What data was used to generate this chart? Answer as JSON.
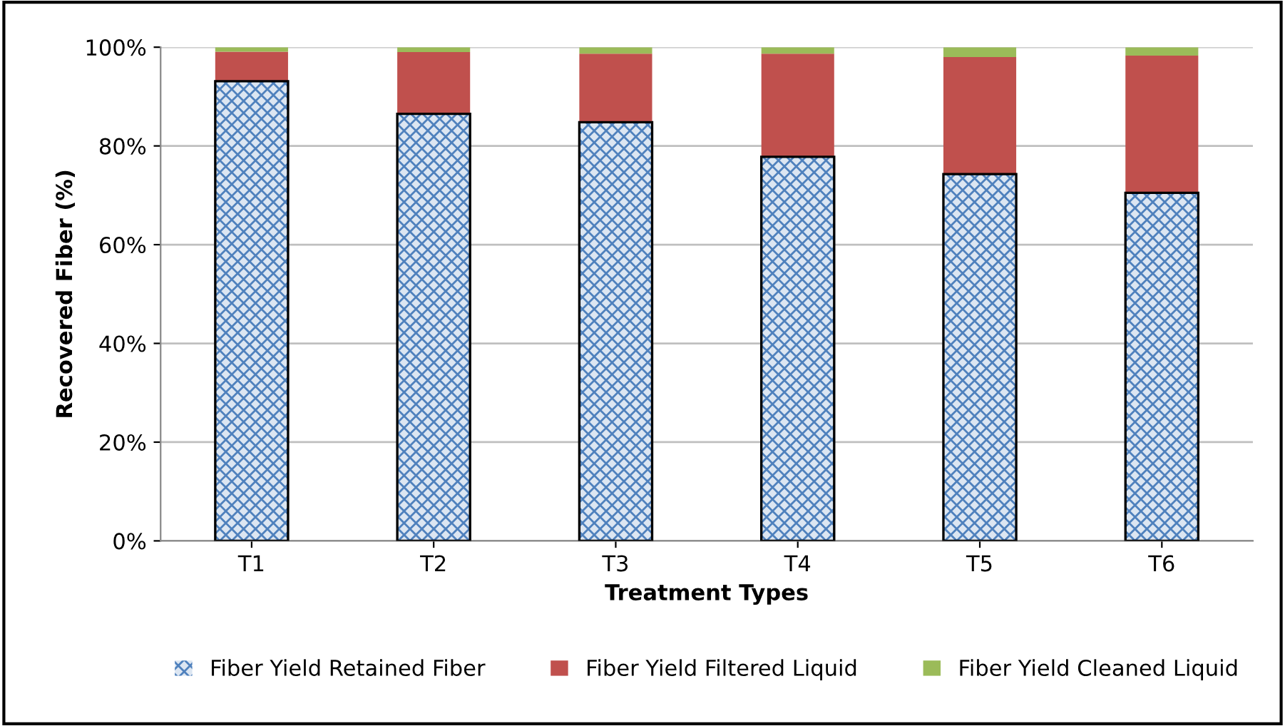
{
  "chart_data": {
    "type": "bar",
    "stacked": true,
    "xlabel": "Treatment Types",
    "ylabel": "Recovered Fiber (%)",
    "categories": [
      "T1",
      "T2",
      "T3",
      "T4",
      "T5",
      "T6"
    ],
    "series": [
      {
        "name": "Fiber Yield Retained Fiber",
        "color": "#4f81bd",
        "values": [
          93.1,
          86.5,
          84.8,
          77.8,
          74.3,
          70.5
        ]
      },
      {
        "name": "Fiber Yield Filtered Liquid",
        "color": "#c0504d",
        "values": [
          6.0,
          12.5,
          13.9,
          20.9,
          23.7,
          27.8
        ]
      },
      {
        "name": "Fiber Yield Cleaned Liquid",
        "color": "#9bbb59",
        "values": [
          0.9,
          1.0,
          1.3,
          1.3,
          2.0,
          1.7
        ]
      }
    ],
    "ylim": [
      0,
      100
    ],
    "yticks": [
      {
        "value": 0,
        "label": "0%"
      },
      {
        "value": 20,
        "label": "20%"
      },
      {
        "value": 40,
        "label": "40%"
      },
      {
        "value": 60,
        "label": "60%"
      },
      {
        "value": 80,
        "label": "80%"
      },
      {
        "value": 100,
        "label": "100%"
      }
    ],
    "grid": "y",
    "legend": "bottom"
  }
}
